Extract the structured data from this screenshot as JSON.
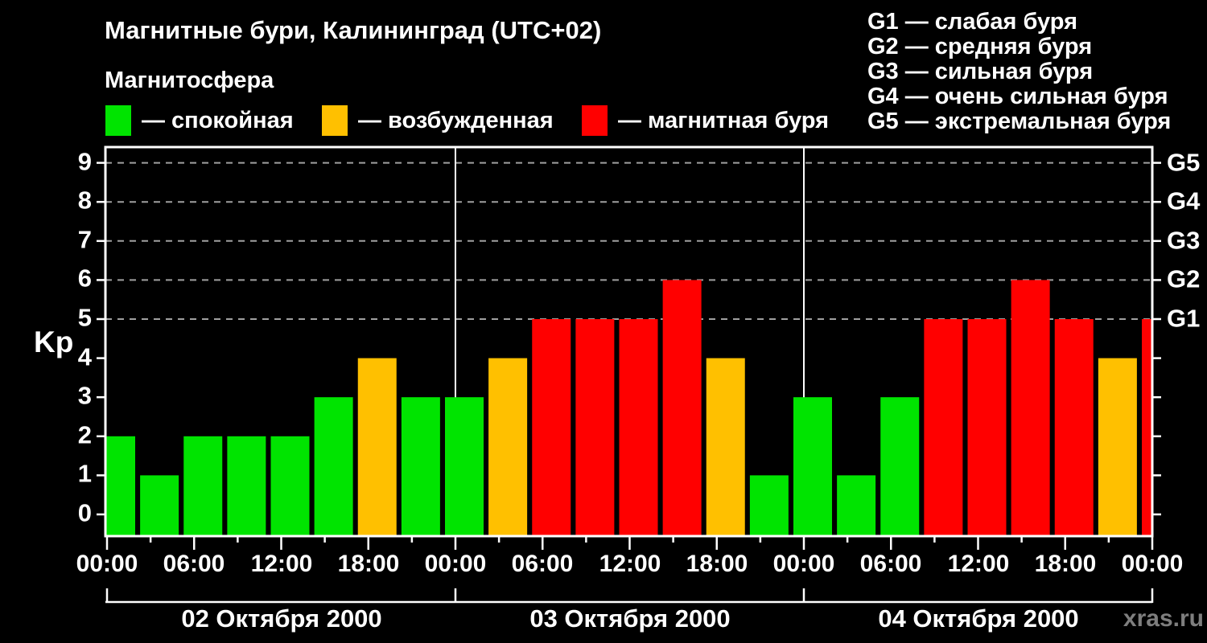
{
  "title": "Магнитные бури, Калининград (UTC+02)",
  "legend": {
    "title": "Магнитосфера",
    "items": [
      {
        "label": "— спокойная",
        "color_key": "calm"
      },
      {
        "label": "— возбужденная",
        "color_key": "excited"
      },
      {
        "label": "— магнитная буря",
        "color_key": "storm"
      }
    ]
  },
  "g_legend": {
    "lines": [
      "G1 — слабая буря",
      "G2 — средняя буря",
      "G3 — сильная буря",
      "G4 — очень сильная буря",
      "G5 — экстремальная буря"
    ]
  },
  "watermark": "xras.ru",
  "chart_data": {
    "type": "bar",
    "ylabel": "Kp",
    "ylim": [
      0,
      9
    ],
    "interval_hours": 3,
    "grid": "dashed horizontal lines at Kp 5..9 only",
    "y_ticks": [
      0,
      1,
      2,
      3,
      4,
      5,
      6,
      7,
      8,
      9
    ],
    "x_time_labels": [
      "00:00",
      "06:00",
      "12:00",
      "18:00",
      "00:00",
      "06:00",
      "12:00",
      "18:00",
      "00:00",
      "06:00",
      "12:00",
      "18:00",
      "00:00"
    ],
    "grid_levels": [
      {
        "kp": 5,
        "label": "G1"
      },
      {
        "kp": 6,
        "label": "G2"
      },
      {
        "kp": 7,
        "label": "G3"
      },
      {
        "kp": 8,
        "label": "G4"
      },
      {
        "kp": 9,
        "label": "G5"
      }
    ],
    "days": [
      {
        "date_label": "02 Октября 2000",
        "values": [
          2,
          1,
          2,
          2,
          2,
          3,
          4,
          3
        ]
      },
      {
        "date_label": "03 Октября 2000",
        "values": [
          3,
          4,
          5,
          5,
          5,
          6,
          4,
          1
        ]
      },
      {
        "date_label": "04 Октября 2000",
        "values": [
          3,
          1,
          3,
          5,
          5,
          6,
          5,
          4
        ]
      }
    ],
    "next_interval_partial_value": 5,
    "thresholds": {
      "excited_at": 4,
      "storm_from": 5
    },
    "colors": {
      "calm": "#00e400",
      "excited": "#ffc000",
      "storm": "#ff0000",
      "grid": "#a0a0a0",
      "axis": "#ffffff"
    }
  }
}
